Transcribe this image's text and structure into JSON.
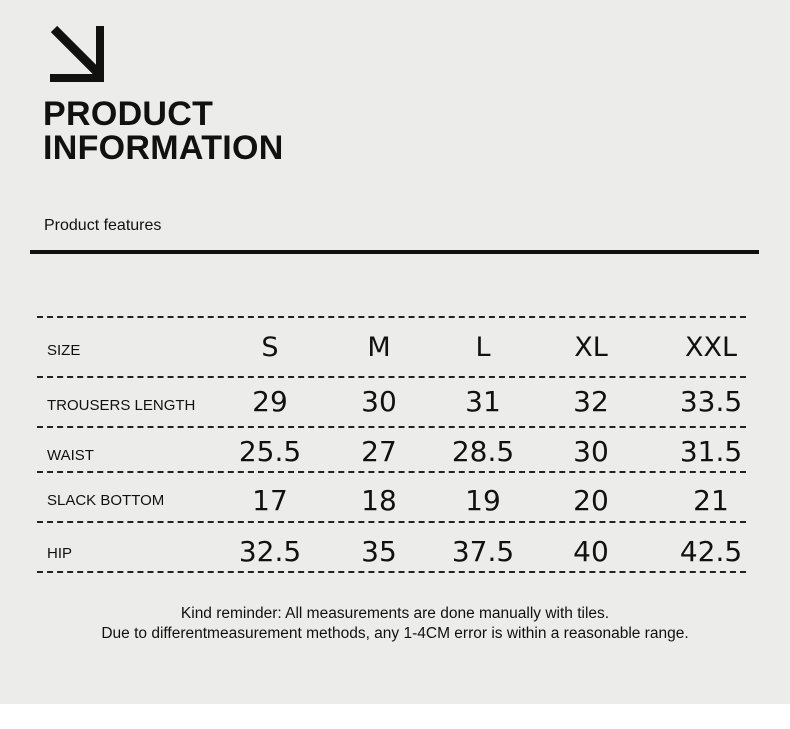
{
  "header": {
    "title_line1": "PRODUCT",
    "title_line2": "INFORMATION",
    "icon": "arrow-down-right-icon"
  },
  "section_label": "Product features",
  "table": {
    "header_label": "SIZE",
    "sizes": [
      "S",
      "M",
      "L",
      "XL",
      "XXL"
    ],
    "rows": [
      {
        "label": "TROUSERS LENGTH",
        "values": [
          "29",
          "30",
          "31",
          "32",
          "33.5"
        ]
      },
      {
        "label": "WAIST",
        "values": [
          "25.5",
          "27",
          "28.5",
          "30",
          "31.5"
        ]
      },
      {
        "label": "SLACK BOTTOM",
        "values": [
          "17",
          "18",
          "19",
          "20",
          "21"
        ]
      },
      {
        "label": "HIP",
        "values": [
          "32.5",
          "35",
          "37.5",
          "40",
          "42.5"
        ]
      }
    ]
  },
  "notes": {
    "line1": "Kind reminder: All measurements are done manually with tiles.",
    "line2": "Due to differentmeasurement methods, any 1-4CM error is within a reasonable range."
  }
}
